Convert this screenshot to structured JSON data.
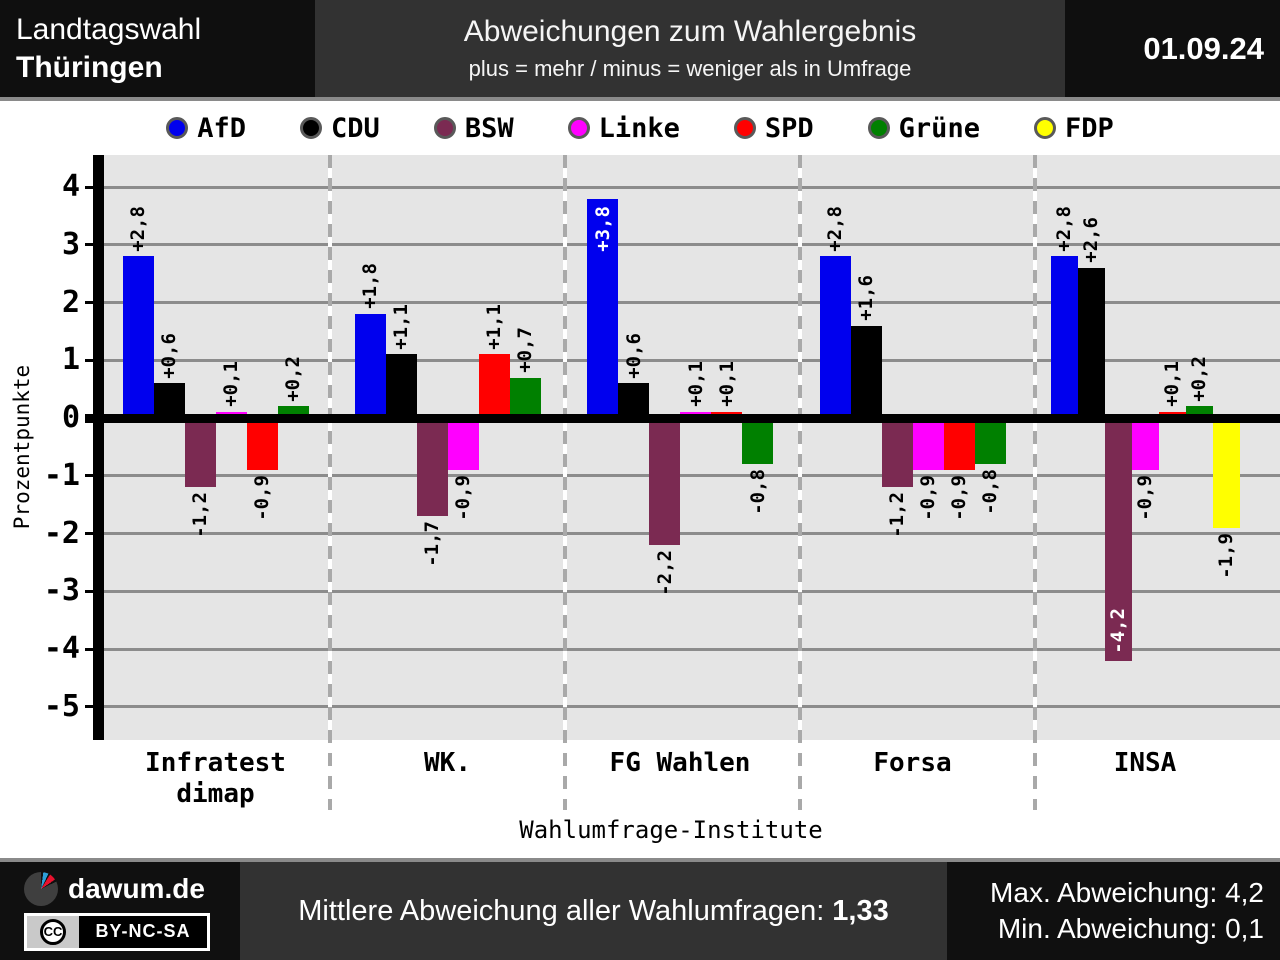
{
  "header": {
    "election_line1": "Landtagswahl",
    "election_line2": "Thüringen",
    "title": "Abweichungen zum Wahlergebnis",
    "subtitle": "plus = mehr / minus = weniger als in Umfrage",
    "date": "01.09.24"
  },
  "chart_data": {
    "type": "bar",
    "title": "Abweichungen zum Wahlergebnis",
    "xlabel": "Wahlumfrage-Institute",
    "ylabel": "Prozentpunkte",
    "ylim": [
      -5.6,
      4.6
    ],
    "grid": true,
    "legend_position": "top",
    "yticks": {
      "values": [
        4,
        3,
        2,
        1,
        0,
        -1,
        -2,
        -3,
        -4,
        -5
      ],
      "labels": [
        "4",
        "3",
        "2",
        "1",
        "0",
        "-1",
        "-2",
        "-3",
        "-4",
        "-5"
      ]
    },
    "categories": [
      "Infratest dimap",
      "WK.",
      "FG Wahlen",
      "Forsa",
      "INSA"
    ],
    "category_lines": [
      [
        "Infratest",
        "dimap"
      ],
      [
        "WK."
      ],
      [
        "FG Wahlen"
      ],
      [
        "Forsa"
      ],
      [
        "INSA"
      ]
    ],
    "series": [
      {
        "name": "AfD",
        "color": "#0000ee",
        "values": [
          2.8,
          1.8,
          3.8,
          2.8,
          2.8
        ],
        "labels": [
          "+2,8",
          "+1,8",
          "+3,8",
          "+2,8",
          "+2,8"
        ]
      },
      {
        "name": "CDU",
        "color": "#000000",
        "values": [
          0.6,
          1.1,
          0.6,
          1.6,
          2.6
        ],
        "labels": [
          "+0,6",
          "+1,1",
          "+0,6",
          "+1,6",
          "+2,6"
        ]
      },
      {
        "name": "BSW",
        "color": "#7b2a52",
        "values": [
          -1.2,
          -1.7,
          -2.2,
          -1.2,
          -4.2
        ],
        "labels": [
          "-1,2",
          "-1,7",
          "-2,2",
          "-1,2",
          "-4,2"
        ]
      },
      {
        "name": "Linke",
        "color": "#ff00ff",
        "values": [
          0.1,
          -0.9,
          0.1,
          -0.9,
          -0.9
        ],
        "labels": [
          "+0,1",
          "-0,9",
          "+0,1",
          "-0,9",
          "-0,9"
        ]
      },
      {
        "name": "SPD",
        "color": "#ff0000",
        "values": [
          -0.9,
          1.1,
          0.1,
          -0.9,
          0.1
        ],
        "labels": [
          "-0,9",
          "+1,1",
          "+0,1",
          "-0,9",
          "+0,1"
        ]
      },
      {
        "name": "Grüne",
        "color": "#008000",
        "values": [
          0.2,
          0.7,
          -0.8,
          -0.8,
          0.2
        ],
        "labels": [
          "+0,2",
          "+0,7",
          "-0,8",
          "-0,8",
          "+0,2"
        ]
      },
      {
        "name": "FDP",
        "color": "#ffff00",
        "values": [
          null,
          null,
          null,
          null,
          -1.9
        ],
        "labels": [
          null,
          null,
          null,
          null,
          "-1,9"
        ]
      }
    ]
  },
  "footer": {
    "brand": "dawum.de",
    "cc_initials": "CC",
    "license": "BY-NC-SA",
    "mean_label": "Mittlere Abweichung aller Wahlumfragen:",
    "mean_value": "1,33",
    "max_text": "Max. Abweichung: 4,2",
    "min_text": "Min. Abweichung: 0,1"
  }
}
